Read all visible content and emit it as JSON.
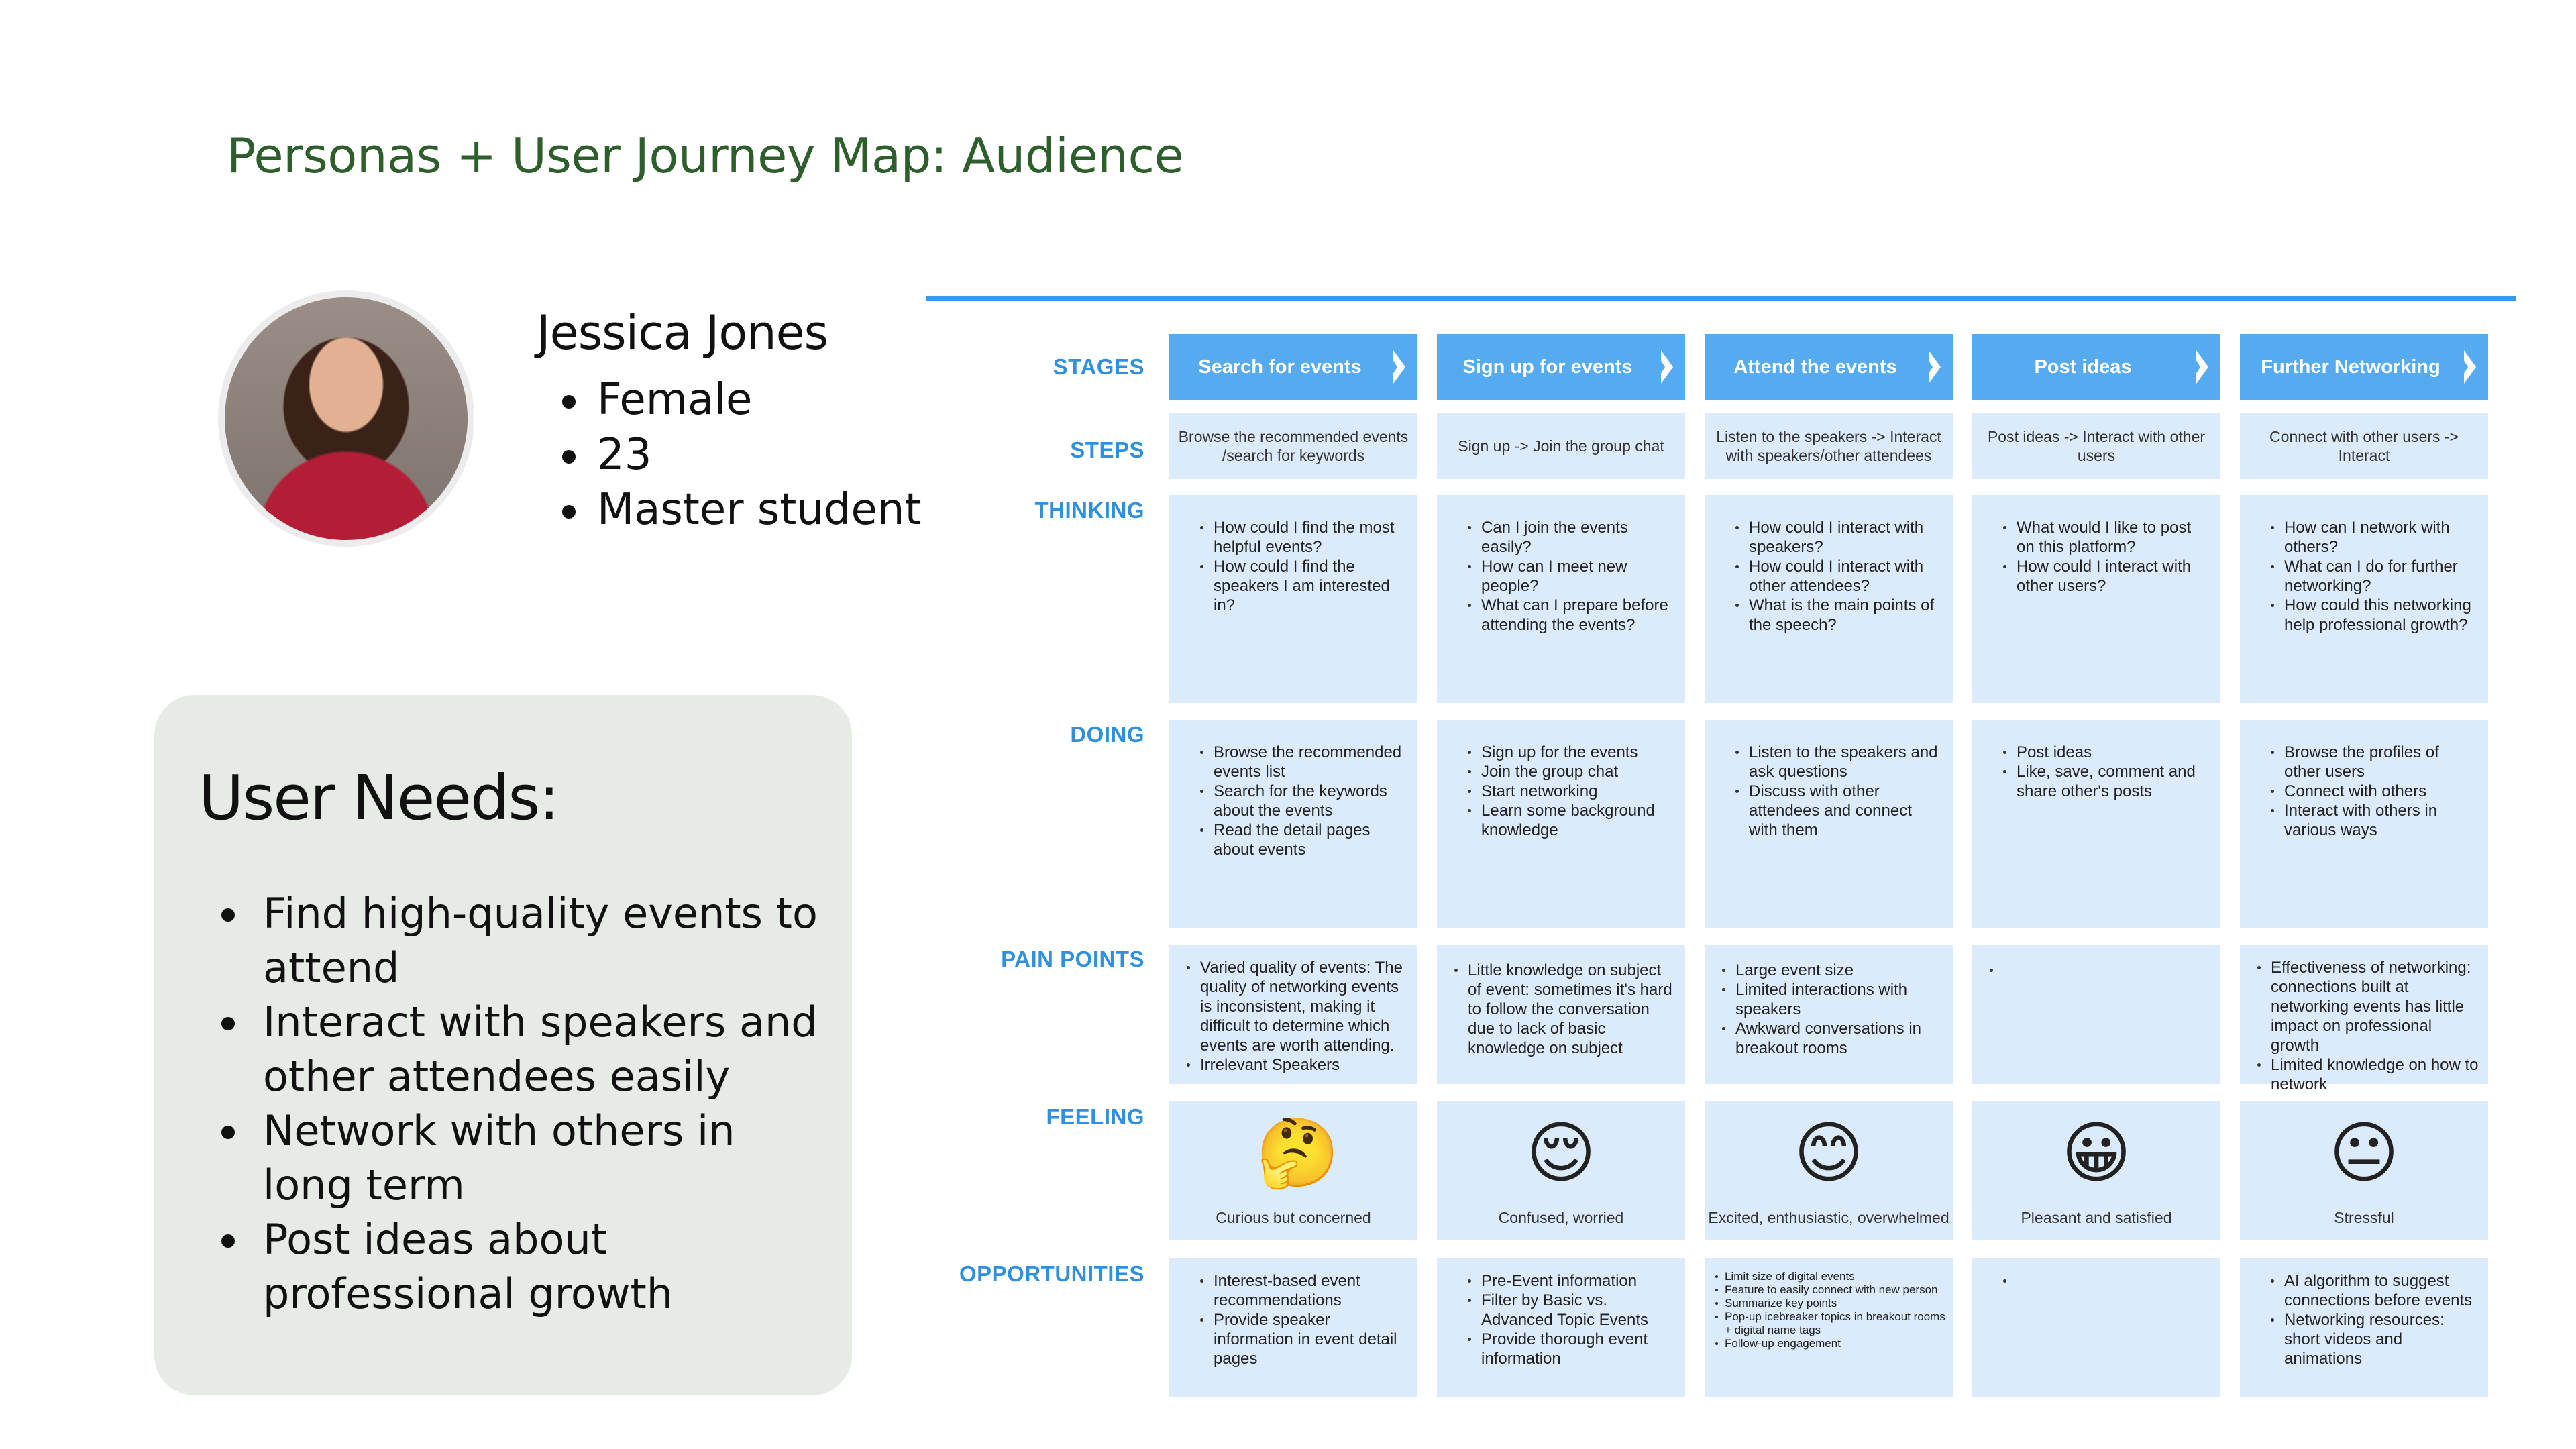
{
  "title": "Personas + User Journey Map: Audience",
  "persona": {
    "name": "Jessica Jones",
    "attributes": [
      "Female",
      "23",
      "Master student"
    ]
  },
  "user_needs": {
    "heading": "User Needs:",
    "items": [
      "Find high-quality events to attend",
      "Interact with speakers and other attendees easily",
      "Network with others in long term",
      "Post ideas about professional growth"
    ]
  },
  "row_labels": {
    "stages": "STAGES",
    "steps": "STEPS",
    "thinking": "THINKING",
    "doing": "DOING",
    "pain_points": "PAIN POINTS",
    "feeling": "FEELING",
    "opportunities": "OPPORTUNITIES"
  },
  "columns": [
    {
      "stage": "Search for events",
      "steps": "Browse the recommended events /search for keywords",
      "thinking": [
        "How could I find the most helpful events?",
        "How could I find the speakers I am interested in?"
      ],
      "doing": [
        "Browse the recommended events list",
        "Search for the keywords about the events",
        "Read the detail pages about events"
      ],
      "pain_points": [
        "Varied quality of events: The quality of networking events is inconsistent, making it difficult to determine which events are worth attending.",
        "Irrelevant Speakers"
      ],
      "feeling": {
        "emoji": "🤔",
        "emoji_name": "thinking-face-icon",
        "text": "Curious but concerned"
      },
      "opportunities": [
        "Interest-based event recommendations",
        "Provide speaker information in event detail pages"
      ]
    },
    {
      "stage": "Sign up for events",
      "steps": "Sign up -> Join the group chat",
      "thinking": [
        "Can I join the events easily?",
        "How can I meet new people?",
        "What can I prepare before attending the events?"
      ],
      "doing": [
        "Sign up for the events",
        "Join the group chat",
        "Start networking",
        "Learn some background knowledge"
      ],
      "pain_points": [
        "Little knowledge on subject of event: sometimes it's hard to follow the conversation due to lack of basic knowledge on subject"
      ],
      "feeling": {
        "emoji": "😌",
        "emoji_name": "relieved-face-icon",
        "text": "Confused, worried"
      },
      "opportunities": [
        "Pre-Event information",
        "Filter by Basic vs. Advanced Topic Events",
        "Provide thorough event information"
      ]
    },
    {
      "stage": "Attend the events",
      "steps": "Listen to the speakers -> Interact with speakers/other attendees",
      "thinking": [
        "How could I interact with speakers?",
        "How could I interact with other attendees?",
        "What is the main points of the speech?"
      ],
      "doing": [
        "Listen to the speakers and ask questions",
        "Discuss with other attendees and connect with them"
      ],
      "pain_points": [
        "Large event size",
        "Limited interactions with speakers",
        "Awkward conversations in breakout rooms"
      ],
      "feeling": {
        "emoji": "😊",
        "emoji_name": "smiling-face-icon",
        "text": "Excited, enthusiastic, overwhelmed"
      },
      "opportunities": [
        "Limit size of digital events",
        "Feature to easily connect with new person",
        "Summarize key points",
        "Pop-up icebreaker topics in breakout rooms + digital name tags",
        "Follow-up engagement"
      ]
    },
    {
      "stage": "Post ideas",
      "steps": "Post ideas -> Interact with other users",
      "thinking": [
        "What would I like to post on this platform?",
        "How could I interact with other users?"
      ],
      "doing": [
        "Post ideas",
        "Like, save, comment and share other's posts"
      ],
      "pain_points": [
        ""
      ],
      "feeling": {
        "emoji": "😀",
        "emoji_name": "grinning-face-icon",
        "text": "Pleasant and satisfied"
      },
      "opportunities": [
        ""
      ]
    },
    {
      "stage": "Further Networking",
      "steps": "Connect with other users -> Interact",
      "thinking": [
        "How can I network with others?",
        "What can I do for further networking?",
        "How could this networking help professional growth?"
      ],
      "doing": [
        "Browse the profiles of other users",
        "Connect with others",
        "Interact with others in various ways"
      ],
      "pain_points": [
        "Effectiveness of networking: connections built at networking events has little impact on professional growth",
        "Limited knowledge on how to network"
      ],
      "feeling": {
        "emoji": "😐",
        "emoji_name": "neutral-face-icon",
        "text": "Stressful"
      },
      "opportunities": [
        "AI algorithm to suggest connections before events",
        "Networking resources: short videos and animations"
      ]
    }
  ],
  "colors": {
    "title": "#2e5e2c",
    "accent_blue": "#3c97e6",
    "stage_fill": "#56aaf0",
    "cell_fill": "#dcebfc",
    "needs_panel": "#e6ebe5"
  }
}
